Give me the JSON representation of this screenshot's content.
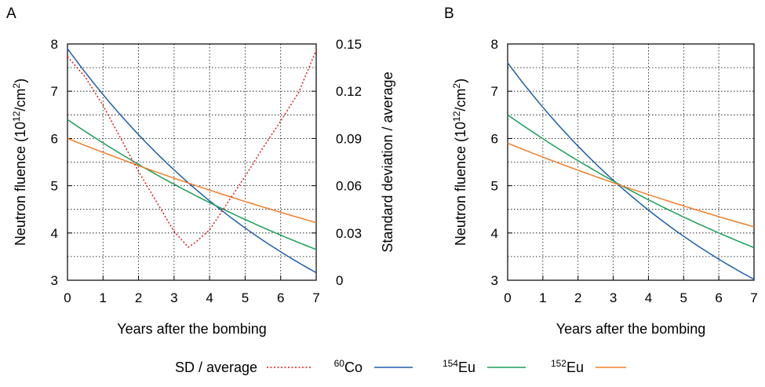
{
  "chart_data": [
    {
      "panel_label": "A",
      "type": "line",
      "xlabel": "Years after the bombing",
      "ylabel_main": "Neutron fluence (10",
      "ylabel_sup": "12",
      "ylabel_mid": "/cm",
      "ylabel_sup2": "2",
      "ylabel_end": ")",
      "y2label": "Standard deviation / average",
      "xlim": [
        0,
        7
      ],
      "ylim": [
        3,
        8
      ],
      "y2lim": [
        0,
        0.15
      ],
      "xticks": [
        "0",
        "1",
        "2",
        "3",
        "4",
        "5",
        "6",
        "7"
      ],
      "yticks": [
        "3",
        "4",
        "5",
        "6",
        "7",
        "8"
      ],
      "y2ticks": [
        "0",
        "0.03",
        "0.06",
        "0.09",
        "0.12",
        "0.15"
      ],
      "grid": true,
      "series": [
        {
          "key": "co60",
          "x": [
            0,
            7
          ],
          "y": [
            7.9,
            3.16
          ],
          "curve": "exp"
        },
        {
          "key": "eu154",
          "x": [
            0,
            7
          ],
          "y": [
            6.4,
            3.65
          ],
          "curve": "exp"
        },
        {
          "key": "eu152",
          "x": [
            0,
            7
          ],
          "y": [
            6.0,
            4.22
          ],
          "curve": "exp"
        },
        {
          "key": "sd",
          "axis": "right",
          "x": [
            0,
            0.5,
            1.0,
            1.5,
            2.0,
            2.5,
            3.0,
            3.4,
            3.6,
            4.0,
            4.5,
            5.0,
            5.5,
            6.0,
            6.5,
            7.0
          ],
          "y": [
            0.142,
            0.129,
            0.111,
            0.09,
            0.069,
            0.05,
            0.031,
            0.021,
            0.024,
            0.032,
            0.049,
            0.066,
            0.084,
            0.101,
            0.119,
            0.146
          ]
        }
      ]
    },
    {
      "panel_label": "B",
      "type": "line",
      "xlabel": "Years after the bombing",
      "ylabel_main": "Neutron fluence (10",
      "ylabel_sup": "12",
      "ylabel_mid": "/cm",
      "ylabel_sup2": "2",
      "ylabel_end": ")",
      "xlim": [
        0,
        7
      ],
      "ylim": [
        3,
        8
      ],
      "xticks": [
        "0",
        "1",
        "2",
        "3",
        "4",
        "5",
        "6",
        "7"
      ],
      "yticks": [
        "3",
        "4",
        "5",
        "6",
        "7",
        "8"
      ],
      "grid": true,
      "series": [
        {
          "key": "co60",
          "x": [
            0,
            7
          ],
          "y": [
            7.6,
            3.02
          ],
          "curve": "exp"
        },
        {
          "key": "eu154",
          "x": [
            0,
            7
          ],
          "y": [
            6.5,
            3.69
          ],
          "curve": "exp"
        },
        {
          "key": "eu152",
          "x": [
            0,
            7
          ],
          "y": [
            5.9,
            4.13
          ],
          "curve": "exp"
        }
      ]
    }
  ],
  "legend": {
    "placement": "bottom",
    "entries": [
      {
        "key": "sd",
        "label": "SD / average",
        "sup": "",
        "color": "#e31a1c",
        "dash": "dotted"
      },
      {
        "key": "co60",
        "label": "Co",
        "sup": "60",
        "color": "#1f5fa8",
        "dash": "solid"
      },
      {
        "key": "eu154",
        "label": "Eu",
        "sup": "154",
        "color": "#1a9e5a",
        "dash": "solid"
      },
      {
        "key": "eu152",
        "label": "Eu",
        "sup": "152",
        "color": "#f07e2a",
        "dash": "solid"
      }
    ]
  }
}
